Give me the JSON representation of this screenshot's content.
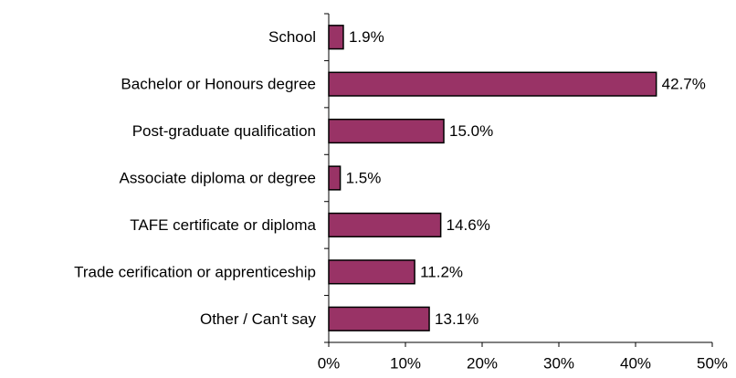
{
  "chart_data": {
    "type": "bar",
    "orientation": "horizontal",
    "categories": [
      "School",
      "Bachelor or Honours degree",
      "Post-graduate qualification",
      "Associate diploma or degree",
      "TAFE certificate or diploma",
      "Trade cerification or apprenticeship",
      "Other / Can't say"
    ],
    "values": [
      1.9,
      42.7,
      15.0,
      1.5,
      14.6,
      11.2,
      13.1
    ],
    "value_labels": [
      "1.9%",
      "42.7%",
      "15.0%",
      "1.5%",
      "14.6%",
      "11.2%",
      "13.1%"
    ],
    "color": "#993366",
    "xlim": [
      0,
      50
    ],
    "xticks": [
      {
        "value": 0,
        "label": "0%"
      },
      {
        "value": 10,
        "label": "10%"
      },
      {
        "value": 20,
        "label": "20%"
      },
      {
        "value": 30,
        "label": "30%"
      },
      {
        "value": 40,
        "label": "40%"
      },
      {
        "value": 50,
        "label": "50%"
      }
    ]
  }
}
